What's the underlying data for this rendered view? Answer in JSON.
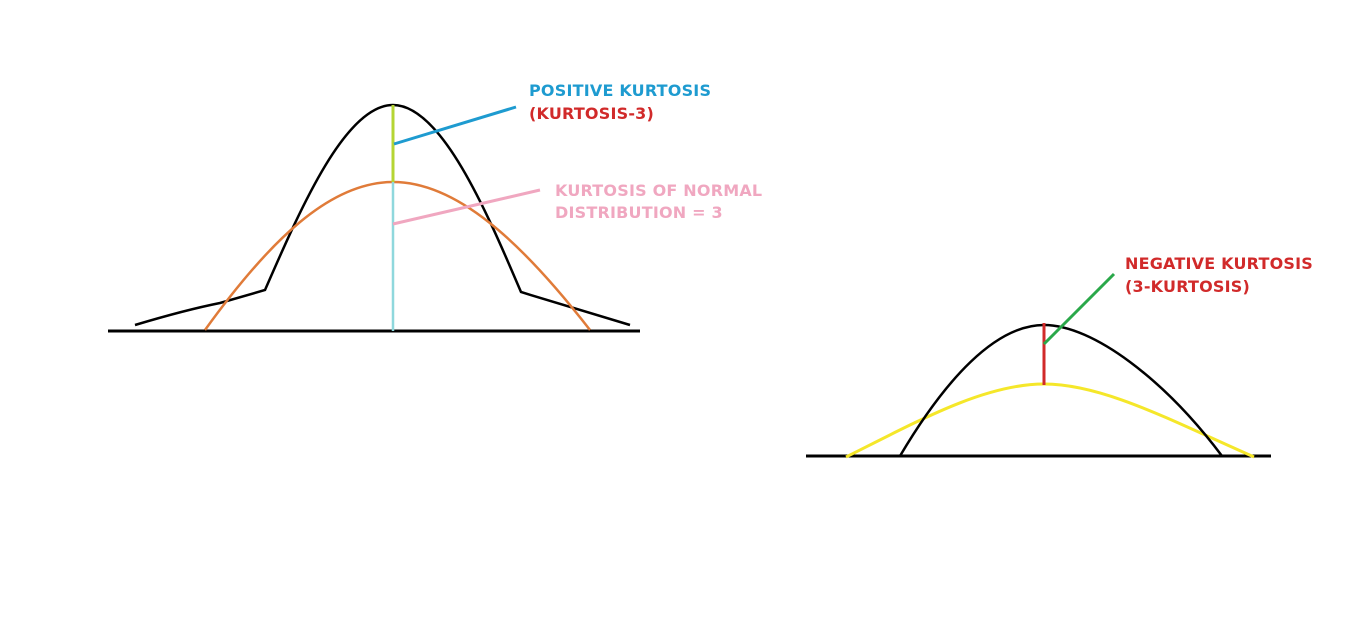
{
  "labels": {
    "positive_title": "POSITIVE KURTOSIS",
    "positive_sub": "(KURTOSIS-3)",
    "normal_line1": "KURTOSIS OF NORMAL",
    "normal_line2": "DISTRIBUTION = 3",
    "negative_title": "NEGATIVE KURTOSIS",
    "negative_sub": "(3-KURTOSIS)"
  },
  "colors": {
    "axis": "#000000",
    "peaked_curve": "#000000",
    "normal_curve": "#e07b39",
    "excess_marker": "#b5d534",
    "center_line": "#8fd8dd",
    "positive_pointer": "#1e9bd0",
    "normal_pointer": "#f0a7c0",
    "flat_curve": "#000000",
    "reference_curve": "#f5e72a",
    "deficit_marker": "#d12a2a",
    "negative_pointer": "#2aa84a"
  }
}
